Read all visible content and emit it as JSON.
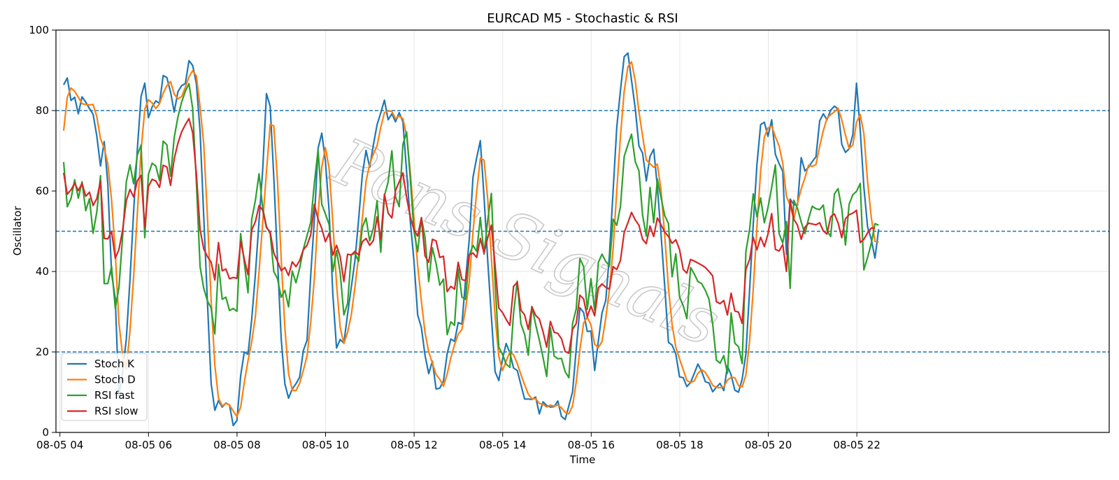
{
  "watermark": "Pons Signals",
  "chart_data": {
    "type": "line",
    "title": "EURCAD M5 - Stochastic & RSI",
    "xlabel": "Time",
    "ylabel": "Oscillator",
    "ylim": [
      0,
      100
    ],
    "xlim": [
      -0.09,
      23.7
    ],
    "x_start": 0.083,
    "x_step": 0.0833,
    "xticks": [
      {
        "pos": 0,
        "label": "08-05 04"
      },
      {
        "pos": 2,
        "label": "08-05 06"
      },
      {
        "pos": 4,
        "label": "08-05 08"
      },
      {
        "pos": 6,
        "label": "08-05 10"
      },
      {
        "pos": 8,
        "label": "08-05 12"
      },
      {
        "pos": 10,
        "label": "08-05 14"
      },
      {
        "pos": 12,
        "label": "08-05 16"
      },
      {
        "pos": 14,
        "label": "08-05 18"
      },
      {
        "pos": 16,
        "label": "08-05 20"
      },
      {
        "pos": 18,
        "label": "08-05 22"
      }
    ],
    "yticks": [
      0,
      20,
      40,
      60,
      80,
      100
    ],
    "hlines": [
      20,
      50,
      80
    ],
    "grid": true,
    "legend": "bottom-left",
    "series": [
      {
        "name": "Stoch K",
        "color": "#1f77b4",
        "values": [
          86.4,
          88.1,
          82.5,
          83.3,
          79.2,
          83.4,
          82.1,
          80.5,
          79.1,
          73.7,
          66.2,
          72.3,
          61.7,
          39.5,
          33.3,
          9.2,
          15.0,
          23.2,
          38.1,
          55.0,
          70.5,
          83.5,
          86.8,
          78.2,
          80.9,
          82.4,
          81.8,
          88.7,
          88.2,
          84.6,
          79.6,
          84.7,
          86.2,
          86.7,
          92.4,
          91.2,
          86.7,
          74.8,
          53.7,
          32.4,
          12.1,
          5.5,
          7.9,
          6.3,
          7.3,
          6.8,
          1.7,
          3.0,
          14.1,
          20.0,
          19.4,
          28.1,
          39.4,
          52.6,
          65.5,
          84.2,
          81.1,
          63.4,
          42.8,
          23.2,
          12.1,
          8.5,
          10.8,
          12.1,
          13.7,
          20.3,
          22.9,
          39.1,
          53.0,
          70.6,
          74.4,
          67.4,
          55.0,
          34.3,
          21.0,
          23.1,
          22.2,
          29.4,
          36.1,
          42.7,
          53.0,
          64.1,
          70.1,
          65.9,
          71.5,
          76.5,
          79.4,
          82.6,
          77.7,
          79.2,
          77.2,
          79.5,
          77.2,
          64.8,
          52.6,
          42.6,
          29.2,
          26.1,
          19.2,
          14.6,
          17.7,
          10.8,
          11.0,
          12.8,
          19.6,
          23.2,
          22.6,
          27.3,
          26.9,
          37.9,
          48.0,
          63.4,
          68.3,
          72.5,
          58.6,
          42.6,
          28.8,
          15.1,
          12.9,
          18.2,
          22.1,
          19.8,
          16.0,
          15.4,
          11.9,
          8.3,
          8.3,
          8.2,
          8.8,
          4.6,
          7.6,
          6.7,
          6.3,
          6.4,
          7.8,
          4.0,
          3.2,
          6.6,
          10.1,
          20.7,
          31.0,
          29.8,
          25.1,
          25.2,
          15.4,
          22.8,
          29.7,
          32.8,
          44.1,
          60.2,
          75.9,
          85.1,
          93.4,
          94.3,
          87.5,
          80.5,
          71.2,
          69.4,
          62.5,
          68.6,
          70.4,
          61.1,
          49.2,
          36.2,
          22.4,
          21.7,
          19.5,
          13.8,
          13.6,
          11.4,
          12.4,
          14.7,
          17.0,
          15.2,
          12.6,
          12.3,
          10.1,
          11.2,
          12.2,
          10.4,
          16.5,
          14.3,
          10.5,
          10.0,
          13.3,
          19.5,
          35.4,
          51.7,
          66.6,
          76.5,
          77.1,
          73.6,
          77.7,
          69.1,
          66.8,
          64.9,
          44.3,
          58.0,
          56.6,
          56.5,
          68.3,
          65.0,
          65.9,
          67.3,
          68.5,
          77.4,
          79.2,
          77.7,
          80.1,
          81.1,
          80.4,
          71.6,
          69.6,
          70.5,
          74.0,
          86.8,
          75.1,
          61.0,
          51.1,
          48.0,
          43.3,
          50.5
        ]
      },
      {
        "name": "Stoch D",
        "color": "#ff7f0e",
        "values": [
          75.0,
          83.3,
          85.6,
          84.8,
          83.3,
          81.7,
          81.5,
          81.4,
          81.5,
          78.5,
          73.0,
          70.7,
          66.7,
          57.8,
          44.8,
          27.3,
          19.2,
          15.7,
          25.4,
          38.8,
          54.5,
          70.1,
          80.3,
          82.7,
          81.9,
          80.5,
          81.7,
          84.3,
          86.2,
          87.2,
          84.1,
          82.9,
          83.5,
          85.8,
          88.4,
          89.9,
          88.6,
          80.8,
          71.7,
          53.6,
          32.7,
          16.7,
          8.5,
          6.6,
          7.2,
          6.8,
          5.3,
          3.9,
          6.3,
          12.4,
          17.8,
          22.5,
          28.9,
          40.0,
          52.4,
          64.8,
          76.5,
          76.2,
          62.4,
          43.1,
          26.0,
          14.6,
          10.5,
          10.4,
          12.2,
          15.4,
          19.0,
          27.4,
          38.3,
          54.2,
          66.0,
          70.8,
          65.6,
          52.2,
          36.8,
          26.1,
          22.1,
          24.9,
          29.2,
          36.1,
          43.9,
          53.3,
          62.4,
          66.7,
          69.2,
          71.3,
          75.8,
          79.5,
          79.9,
          79.8,
          78.0,
          78.6,
          78.0,
          73.8,
          64.9,
          53.3,
          41.5,
          32.6,
          24.8,
          20.0,
          17.2,
          14.4,
          13.2,
          11.5,
          14.5,
          18.5,
          21.8,
          24.4,
          25.6,
          30.7,
          37.6,
          49.8,
          59.9,
          68.1,
          67.7,
          57.9,
          43.3,
          28.8,
          18.9,
          15.4,
          17.7,
          20.0,
          19.3,
          17.1,
          14.4,
          11.9,
          9.5,
          8.3,
          8.4,
          7.2,
          7.0,
          6.3,
          6.8,
          6.5,
          6.8,
          6.1,
          5.0,
          4.6,
          6.6,
          12.5,
          20.6,
          27.2,
          28.6,
          26.7,
          21.9,
          21.1,
          22.6,
          28.4,
          35.5,
          45.7,
          60.1,
          73.7,
          84.8,
          90.9,
          92.1,
          87.4,
          79.7,
          73.7,
          67.7,
          66.8,
          65.9,
          66.7,
          60.2,
          48.8,
          35.9,
          26.8,
          21.2,
          18.3,
          15.6,
          12.9,
          12.4,
          12.8,
          14.7,
          15.6,
          14.9,
          13.4,
          11.7,
          11.2,
          11.1,
          11.3,
          13.0,
          13.7,
          13.6,
          11.6,
          11.3,
          14.3,
          22.7,
          35.5,
          51.2,
          65.0,
          73.4,
          75.7,
          76.1,
          73.5,
          71.2,
          66.9,
          58.7,
          56.4,
          53.0,
          57.0,
          60.5,
          63.3,
          66.4,
          66.1,
          66.6,
          71.1,
          75.0,
          78.1,
          79.0,
          79.7,
          80.6,
          77.7,
          73.9,
          70.6,
          71.4,
          77.1,
          79.0,
          74.3,
          62.4,
          53.4,
          47.5,
          47.3
        ]
      },
      {
        "name": "RSI fast",
        "color": "#2ca02c",
        "values": [
          67.2,
          56.1,
          58.1,
          62.8,
          58.2,
          62.3,
          55.1,
          58.1,
          49.5,
          54.8,
          63.8,
          37.0,
          37.0,
          41.3,
          30.9,
          35.9,
          48.7,
          62.3,
          66.5,
          61.8,
          69.0,
          71.4,
          48.4,
          64.1,
          66.9,
          66.2,
          62.6,
          72.4,
          71.5,
          63.7,
          73.3,
          78.4,
          82.1,
          84.8,
          86.7,
          80.5,
          62.1,
          41.2,
          35.8,
          32.7,
          30.9,
          24.5,
          41.8,
          33.1,
          33.6,
          30.3,
          30.8,
          30.1,
          49.4,
          42.2,
          34.7,
          53.0,
          57.7,
          64.3,
          55.7,
          51.2,
          49.4,
          40.0,
          38.2,
          33.6,
          35.3,
          31.2,
          40.1,
          37.2,
          40.8,
          45.5,
          48.9,
          52.2,
          62.0,
          70.2,
          56.7,
          54.3,
          51.7,
          40.0,
          45.2,
          39.7,
          29.2,
          32.1,
          44.2,
          44.5,
          42.5,
          51.0,
          53.3,
          47.6,
          50.8,
          57.6,
          44.8,
          58.8,
          62.3,
          70.0,
          58.6,
          56.1,
          71.6,
          74.7,
          63.2,
          50.0,
          44.9,
          53.4,
          48.5,
          37.5,
          45.9,
          42.0,
          36.6,
          38.1,
          24.3,
          27.5,
          26.6,
          40.6,
          33.6,
          33.1,
          44.0,
          46.5,
          45.0,
          53.4,
          44.3,
          52.8,
          59.4,
          37.2,
          21.2,
          19.4,
          17.0,
          16.2,
          29.6,
          37.6,
          27.0,
          24.4,
          19.2,
          31.3,
          26.8,
          22.9,
          18.6,
          13.9,
          26.0,
          19.0,
          18.3,
          18.4,
          15.1,
          13.6,
          27.1,
          30.7,
          43.2,
          41.2,
          30.6,
          38.2,
          30.3,
          42.3,
          44.3,
          42.5,
          41.4,
          53.0,
          51.5,
          56.2,
          68.6,
          71.5,
          74.1,
          67.3,
          65.0,
          54.0,
          48.8,
          60.9,
          52.1,
          63.0,
          58.3,
          53.9,
          51.9,
          38.7,
          44.4,
          33.7,
          31.5,
          28.3,
          41.0,
          39.4,
          37.5,
          37.0,
          35.3,
          33.1,
          27.0,
          18.0,
          17.2,
          19.1,
          14.7,
          29.7,
          22.2,
          21.3,
          17.1,
          44.9,
          50.5,
          59.3,
          53.6,
          58.3,
          52.1,
          55.9,
          60.9,
          66.5,
          49.4,
          47.1,
          52.4,
          35.8,
          57.7,
          55.7,
          52.3,
          49.4,
          53.1,
          56.2,
          55.6,
          55.4,
          56.5,
          50.2,
          48.7,
          59.3,
          60.6,
          55.6,
          46.6,
          56.7,
          59.1,
          59.9,
          61.9,
          40.4,
          43.5,
          47.0,
          51.9,
          51.5
        ]
      },
      {
        "name": "RSI slow",
        "color": "#d62728",
        "values": [
          64.5,
          59.2,
          60.3,
          61.9,
          60.1,
          61.9,
          58.7,
          59.7,
          56.4,
          58.1,
          62.4,
          48.2,
          48.1,
          50.0,
          43.3,
          45.4,
          50.3,
          57.6,
          60.4,
          58.5,
          62.6,
          63.9,
          50.9,
          61.1,
          62.9,
          62.5,
          60.9,
          66.4,
          66.0,
          61.4,
          68.0,
          71.9,
          74.7,
          76.5,
          78.0,
          74.5,
          64.2,
          50.4,
          45.6,
          43.7,
          42.3,
          37.9,
          47.2,
          40.2,
          40.6,
          38.2,
          38.5,
          38.3,
          47.5,
          43.1,
          39.2,
          50.3,
          52.4,
          56.4,
          55.2,
          50.9,
          49.8,
          44.6,
          42.5,
          40.2,
          41.0,
          39.0,
          42.4,
          41.2,
          42.7,
          45.4,
          46.5,
          49.1,
          56.7,
          53.0,
          50.7,
          47.4,
          49.5,
          44.1,
          46.5,
          43.7,
          37.5,
          44.3,
          44.1,
          45.0,
          44.1,
          47.4,
          48.2,
          46.5,
          47.7,
          53.6,
          48.0,
          59.2,
          54.5,
          53.3,
          60.1,
          62.3,
          64.5,
          58.4,
          53.6,
          50.4,
          48.8,
          53.3,
          43.9,
          42.3,
          48.0,
          47.6,
          43.5,
          43.8,
          35.0,
          36.3,
          35.6,
          42.3,
          38.0,
          37.7,
          44.1,
          44.6,
          43.5,
          48.2,
          44.6,
          48.4,
          51.5,
          41.5,
          30.9,
          29.8,
          28.1,
          26.6,
          36.3,
          37.3,
          30.4,
          29.2,
          25.6,
          31.2,
          29.1,
          28.2,
          25.0,
          21.2,
          27.6,
          24.9,
          24.6,
          23.3,
          20.1,
          19.7,
          25.6,
          27.1,
          34.1,
          33.2,
          28.7,
          31.4,
          29.0,
          36.0,
          36.9,
          36.1,
          35.6,
          41.2,
          40.5,
          42.8,
          49.7,
          52.1,
          54.7,
          52.8,
          51.5,
          48.0,
          46.9,
          51.3,
          48.7,
          53.3,
          51.6,
          49.8,
          48.7,
          47.0,
          47.9,
          45.5,
          40.5,
          39.6,
          43.0,
          42.6,
          42.1,
          41.6,
          41.0,
          40.0,
          38.9,
          32.5,
          32.0,
          32.8,
          29.2,
          34.6,
          30.2,
          29.9,
          27.1,
          40.5,
          43.0,
          48.5,
          45.4,
          48.5,
          46.2,
          49.3,
          54.4,
          45.5,
          45.1,
          46.7,
          40.0,
          57.6,
          53.0,
          51.5,
          48.0,
          51.0,
          52.0,
          51.8,
          51.6,
          52.1,
          50.1,
          49.3,
          53.6,
          54.3,
          52.1,
          48.4,
          53.1,
          54.1,
          54.5,
          55.2,
          47.2,
          48.0,
          49.6,
          50.8,
          50.8
        ]
      }
    ]
  }
}
